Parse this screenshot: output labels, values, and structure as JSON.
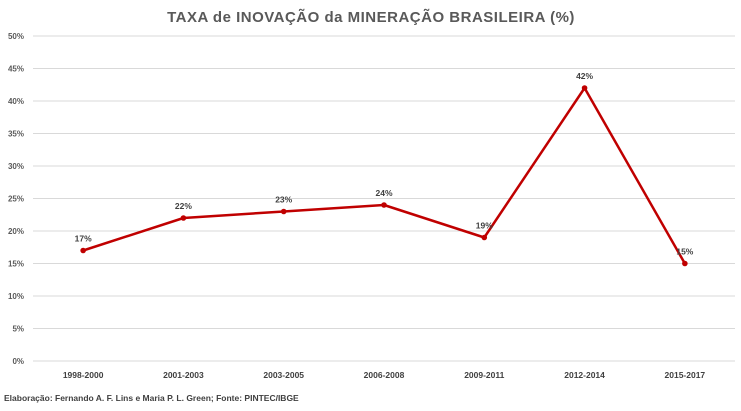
{
  "chart_data": {
    "type": "line",
    "title": "TAXA de INOVAÇÃO da MINERAÇÃO BRASILEIRA (%)",
    "categories": [
      "1998-2000",
      "2001-2003",
      "2003-2005",
      "2006-2008",
      "2009-2011",
      "2012-2014",
      "2015-2017"
    ],
    "values": [
      17,
      22,
      23,
      24,
      19,
      42,
      15
    ],
    "data_labels": [
      "17%",
      "22%",
      "23%",
      "24%",
      "19%",
      "42%",
      "15%"
    ],
    "y_ticks": [
      0,
      5,
      10,
      15,
      20,
      25,
      30,
      35,
      40,
      45,
      50
    ],
    "y_tick_labels": [
      "0%",
      "5%",
      "10%",
      "15%",
      "20%",
      "25%",
      "30%",
      "35%",
      "40%",
      "45%",
      "50%"
    ],
    "ylim": [
      0,
      50
    ],
    "grid": true,
    "legend": "none",
    "line_color": "#C00000",
    "xlabel": "",
    "ylabel": ""
  },
  "footer": "Elaboração: Fernando A. F. Lins e Maria P. L. Green; Fonte: PINTEC/IBGE"
}
